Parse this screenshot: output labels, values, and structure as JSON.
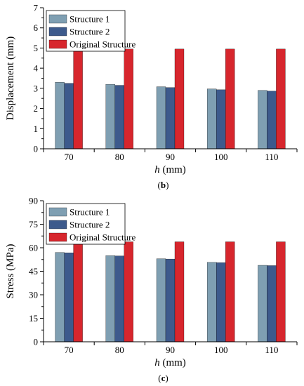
{
  "chart_data": [
    {
      "type": "bar",
      "panel_label": "b",
      "categories": [
        "70",
        "80",
        "90",
        "100",
        "110"
      ],
      "series": [
        {
          "name": "Structure 1",
          "values": [
            3.3,
            3.2,
            3.08,
            2.97,
            2.9
          ],
          "color": "#7f9fb2"
        },
        {
          "name": "Structure 2",
          "values": [
            3.25,
            3.15,
            3.04,
            2.93,
            2.86
          ],
          "color": "#3d5a8c"
        },
        {
          "name": "Original Structure",
          "values": [
            4.95,
            4.95,
            4.95,
            4.95,
            4.95
          ],
          "color": "#d7262d"
        }
      ],
      "xlabel_var": "h",
      "xlabel_unit": " (mm)",
      "ylabel": "Displacement (mm)",
      "ylim": [
        0,
        7
      ],
      "yticks": [
        "0",
        "1",
        "2",
        "3",
        "4",
        "5",
        "6",
        "7"
      ],
      "legend_position": "top-left",
      "grid": false
    },
    {
      "type": "bar",
      "panel_label": "c",
      "categories": [
        "70",
        "80",
        "90",
        "100",
        "110"
      ],
      "series": [
        {
          "name": "Structure 1",
          "values": [
            57.0,
            55.0,
            53.0,
            50.7,
            48.8
          ],
          "color": "#7f9fb2"
        },
        {
          "name": "Structure 2",
          "values": [
            56.8,
            54.8,
            52.8,
            50.5,
            48.6
          ],
          "color": "#3d5a8c"
        },
        {
          "name": "Original Structure",
          "values": [
            63.8,
            63.8,
            63.8,
            63.8,
            63.8
          ],
          "color": "#d7262d"
        }
      ],
      "xlabel_var": "h",
      "xlabel_unit": " (mm)",
      "ylabel": "Stress (MPa)",
      "ylim": [
        0,
        90
      ],
      "yticks": [
        "0",
        "15",
        "30",
        "45",
        "60",
        "75",
        "90"
      ],
      "legend_position": "top-left",
      "grid": false
    }
  ]
}
